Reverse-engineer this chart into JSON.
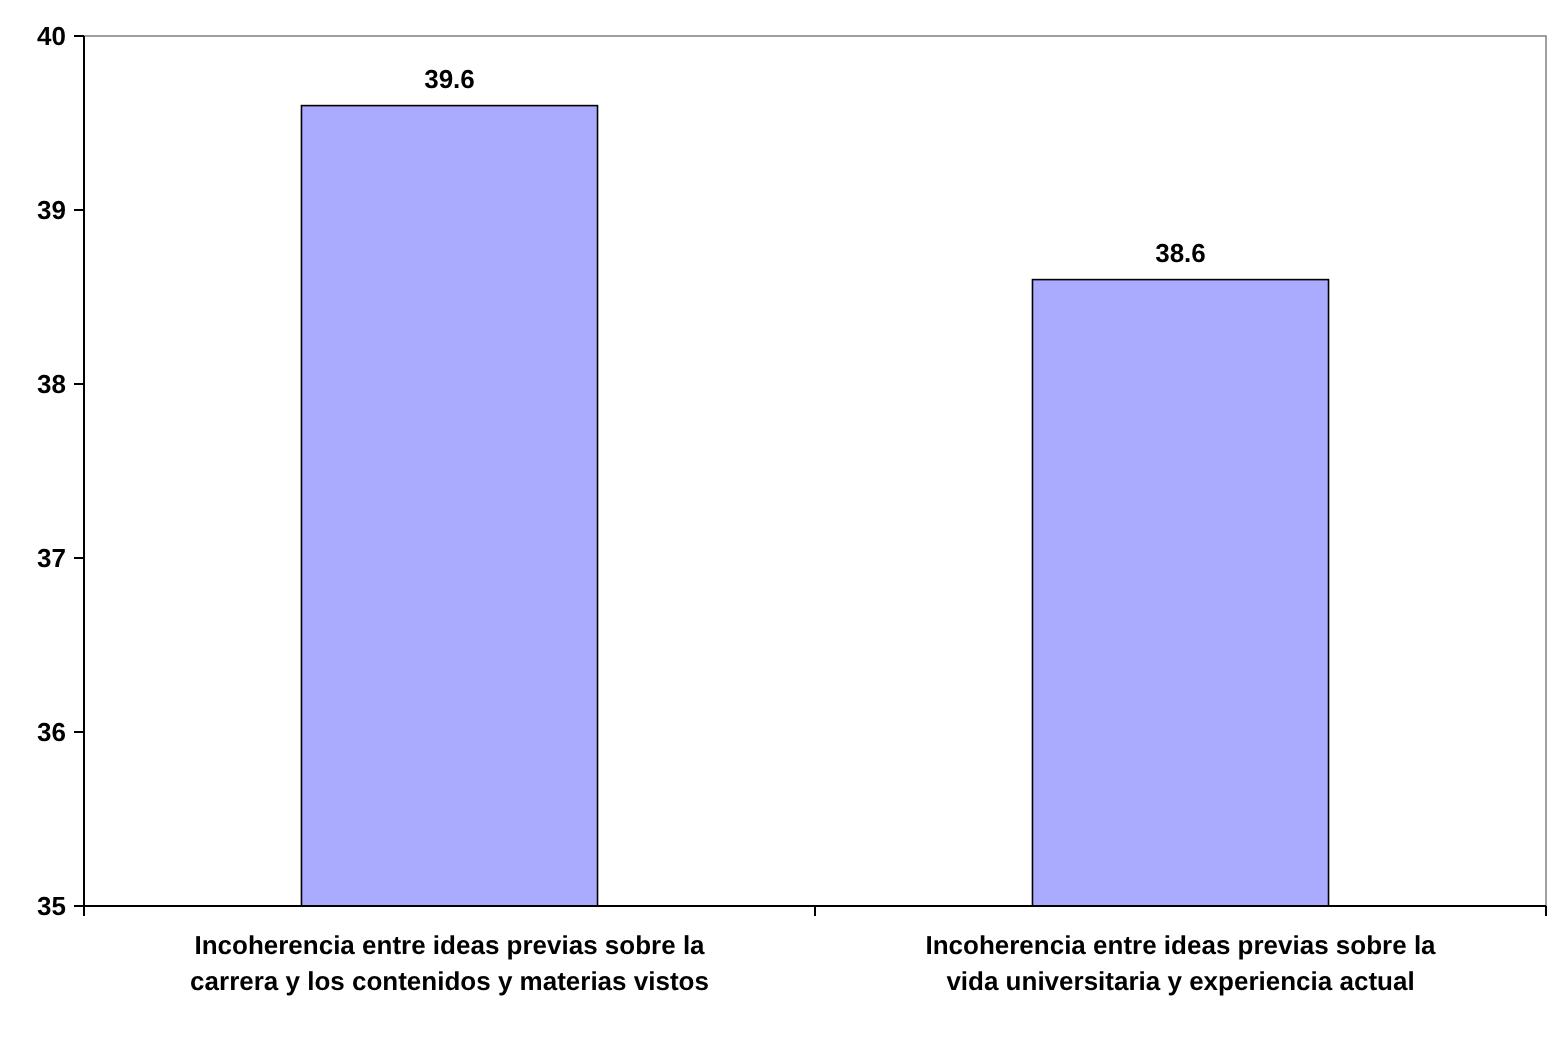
{
  "chart_data": {
    "type": "bar",
    "categories": [
      "Incoherencia entre ideas previas sobre la carrera y los contenidos y materias vistos",
      "Incoherencia entre ideas previas sobre la vida universitaria y experiencia actual"
    ],
    "values": [
      39.6,
      38.6
    ],
    "color": "#aaaaff",
    "ylim": [
      35,
      40
    ],
    "yticks": [
      35,
      36,
      37,
      38,
      39,
      40
    ],
    "data_labels": true
  }
}
